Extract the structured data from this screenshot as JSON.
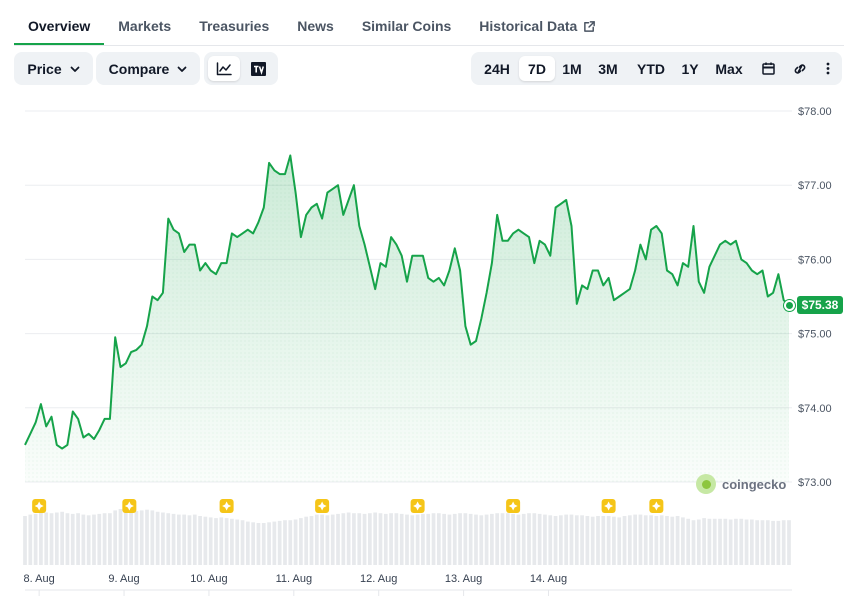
{
  "tabs": [
    {
      "label": "Overview",
      "active": true
    },
    {
      "label": "Markets",
      "active": false
    },
    {
      "label": "Treasuries",
      "active": false
    },
    {
      "label": "News",
      "active": false
    },
    {
      "label": "Similar Coins",
      "active": false
    },
    {
      "label": "Historical Data",
      "active": false
    }
  ],
  "toolbar": {
    "price_label": "Price",
    "compare_label": "Compare",
    "chart_type_icons": [
      "line-chart-icon",
      "tradingview-icon"
    ],
    "ranges": [
      "24H",
      "7D",
      "1M",
      "3M",
      "YTD",
      "1Y",
      "Max"
    ],
    "active_range": "7D",
    "extra_icons": [
      "calendar-icon",
      "link-icon",
      "more-icon"
    ]
  },
  "watermark": "coingecko",
  "colors": {
    "line": "#16a34a",
    "fill": "#16a34a",
    "grid": "#ebedf0",
    "volume": "#e7e9ec"
  },
  "chart_data": {
    "type": "area",
    "title": "",
    "xlabel": "",
    "ylabel": "",
    "x_tick_labels": [
      "8. Aug",
      "9. Aug",
      "10. Aug",
      "11. Aug",
      "12. Aug",
      "13. Aug",
      "14. Aug"
    ],
    "y_tick_labels": [
      "$78.00",
      "$77.00",
      "$76.00",
      "$75.00",
      "$74.00",
      "$73.00"
    ],
    "ylim": [
      73,
      78
    ],
    "grid": true,
    "current_price_label": "$75.38",
    "x_start": "7. Aug 20:00",
    "x_step_hours": 1.5,
    "series": [
      {
        "values": [
          73.5,
          73.65,
          73.8,
          74.05,
          73.75,
          73.88,
          73.5,
          73.45,
          73.5,
          73.95,
          73.85,
          73.6,
          73.65,
          73.58,
          73.7,
          73.85,
          73.85,
          74.95,
          74.55,
          74.6,
          74.75,
          74.78,
          74.85,
          75.1,
          75.5,
          75.45,
          75.55,
          76.55,
          76.4,
          76.35,
          76.1,
          76.2,
          76.2,
          75.85,
          75.95,
          75.85,
          75.8,
          75.95,
          75.95,
          76.35,
          76.3,
          76.35,
          76.4,
          76.35,
          76.5,
          76.7,
          77.3,
          77.2,
          77.15,
          77.15,
          77.4,
          76.9,
          76.3,
          76.6,
          76.7,
          76.75,
          76.55,
          76.9,
          76.95,
          77.0,
          76.6,
          76.8,
          77.0,
          76.45,
          76.2,
          75.9,
          75.6,
          75.95,
          75.9,
          76.3,
          76.2,
          76.05,
          75.7,
          76.05,
          76.05,
          76.05,
          75.75,
          75.7,
          75.75,
          75.65,
          75.85,
          76.15,
          75.85,
          75.1,
          74.85,
          74.9,
          75.2,
          75.55,
          75.95,
          76.6,
          76.25,
          76.25,
          76.35,
          76.4,
          76.35,
          76.3,
          75.95,
          76.25,
          76.2,
          76.05,
          76.7,
          76.75,
          76.8,
          76.45,
          75.4,
          75.65,
          75.6,
          75.85,
          75.85,
          75.65,
          75.75,
          75.45,
          75.5,
          75.55,
          75.6,
          75.85,
          76.2,
          76.0,
          76.4,
          76.45,
          76.35,
          75.85,
          75.8,
          75.65,
          75.95,
          75.9,
          76.45,
          75.7,
          75.55,
          75.9,
          76.05,
          76.2,
          76.25,
          76.2,
          76.25,
          76.0,
          75.95,
          75.85,
          75.8,
          75.85,
          75.5,
          75.55,
          75.8,
          75.45,
          75.38
        ]
      }
    ],
    "event_markers": 8,
    "volume": [
      0.7,
      0.72,
      0.73,
      0.75,
      0.75,
      0.74,
      0.75,
      0.76,
      0.74,
      0.73,
      0.74,
      0.72,
      0.71,
      0.72,
      0.73,
      0.74,
      0.74,
      0.78,
      0.8,
      0.79,
      0.78,
      0.77,
      0.78,
      0.79,
      0.78,
      0.76,
      0.75,
      0.74,
      0.73,
      0.72,
      0.72,
      0.71,
      0.72,
      0.7,
      0.69,
      0.68,
      0.67,
      0.68,
      0.67,
      0.66,
      0.65,
      0.64,
      0.62,
      0.61,
      0.6,
      0.6,
      0.61,
      0.62,
      0.63,
      0.64,
      0.64,
      0.65,
      0.67,
      0.69,
      0.7,
      0.72,
      0.72,
      0.71,
      0.72,
      0.73,
      0.74,
      0.75,
      0.74,
      0.74,
      0.73,
      0.74,
      0.75,
      0.74,
      0.73,
      0.74,
      0.74,
      0.73,
      0.72,
      0.71,
      0.72,
      0.73,
      0.73,
      0.74,
      0.74,
      0.73,
      0.72,
      0.73,
      0.74,
      0.74,
      0.73,
      0.72,
      0.71,
      0.72,
      0.73,
      0.74,
      0.74,
      0.74,
      0.73,
      0.72,
      0.73,
      0.74,
      0.74,
      0.73,
      0.72,
      0.71,
      0.7,
      0.71,
      0.72,
      0.72,
      0.71,
      0.71,
      0.7,
      0.69,
      0.7,
      0.7,
      0.7,
      0.69,
      0.68,
      0.7,
      0.71,
      0.72,
      0.72,
      0.71,
      0.71,
      0.7,
      0.71,
      0.7,
      0.69,
      0.7,
      0.68,
      0.66,
      0.64,
      0.65,
      0.67,
      0.66,
      0.66,
      0.66,
      0.66,
      0.65,
      0.66,
      0.66,
      0.65,
      0.65,
      0.64,
      0.64,
      0.64,
      0.63,
      0.63,
      0.64,
      0.64
    ]
  }
}
